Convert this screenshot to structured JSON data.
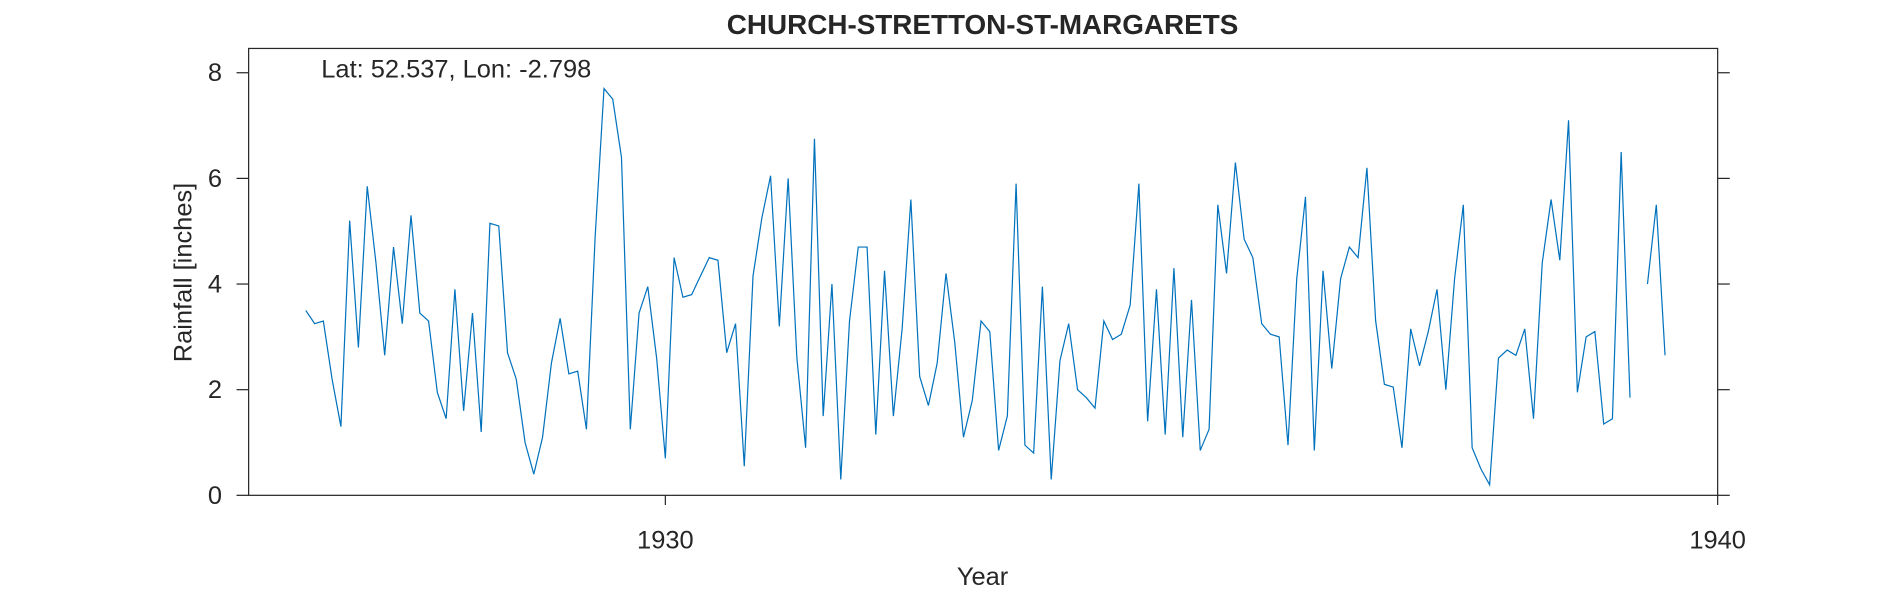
{
  "chart_data": {
    "type": "line",
    "title": "CHURCH-STRETTON-ST-MARGARETS",
    "annotation": "Lat: 52.537, Lon: -2.798",
    "xlabel": "Year",
    "ylabel": "Rainfall [inches]",
    "color": "#0072bd",
    "xlim": [
      1926.04,
      1940
    ],
    "xticks": [
      1930,
      1940
    ],
    "ylim": [
      0,
      8.46
    ],
    "yticks": [
      0,
      2,
      4,
      6,
      8
    ],
    "x": [
      1926.583,
      1926.667,
      1926.75,
      1926.833,
      1926.917,
      1927,
      1927.083,
      1927.167,
      1927.25,
      1927.333,
      1927.417,
      1927.5,
      1927.583,
      1927.667,
      1927.75,
      1927.833,
      1927.917,
      1928,
      1928.083,
      1928.167,
      1928.25,
      1928.333,
      1928.417,
      1928.5,
      1928.583,
      1928.667,
      1928.75,
      1928.833,
      1928.917,
      1929,
      1929.083,
      1929.167,
      1929.25,
      1929.333,
      1929.417,
      1929.5,
      1929.583,
      1929.667,
      1929.75,
      1929.833,
      1929.917,
      1930,
      1930.083,
      1930.167,
      1930.25,
      1930.333,
      1930.417,
      1930.5,
      1930.583,
      1930.667,
      1930.75,
      1930.833,
      1930.917,
      1931,
      1931.083,
      1931.167,
      1931.25,
      1931.333,
      1931.417,
      1931.5,
      1931.583,
      1931.667,
      1931.75,
      1931.833,
      1931.917,
      1932,
      1932.083,
      1932.167,
      1932.25,
      1932.333,
      1932.417,
      1932.5,
      1932.583,
      1932.667,
      1932.75,
      1932.833,
      1932.917,
      1933,
      1933.083,
      1933.167,
      1933.25,
      1933.333,
      1933.417,
      1933.5,
      1933.583,
      1933.667,
      1933.75,
      1933.833,
      1933.917,
      1934,
      1934.083,
      1934.167,
      1934.25,
      1934.333,
      1934.417,
      1934.5,
      1934.583,
      1934.667,
      1934.75,
      1934.833,
      1934.917,
      1935,
      1935.083,
      1935.167,
      1935.25,
      1935.333,
      1935.417,
      1935.5,
      1935.583,
      1935.667,
      1935.75,
      1935.833,
      1935.917,
      1936,
      1936.083,
      1936.167,
      1936.25,
      1936.333,
      1936.417,
      1936.5,
      1936.583,
      1936.667,
      1936.75,
      1936.833,
      1936.917,
      1937,
      1937.083,
      1937.167,
      1937.25,
      1937.333,
      1937.417,
      1937.5,
      1937.583,
      1937.667,
      1937.75,
      1937.833,
      1937.917,
      1938,
      1938.083,
      1938.167,
      1938.25,
      1938.333,
      1938.417,
      1938.5,
      1938.583,
      1938.667,
      1938.75,
      1938.833,
      1938.917,
      1939,
      1939.083,
      1939.167,
      1939.25,
      1939.333,
      1939.417,
      1939.5
    ],
    "values": [
      3.5,
      3.25,
      3.3,
      2.2,
      1.3,
      5.2,
      2.8,
      5.85,
      4.4,
      2.65,
      4.7,
      3.25,
      5.3,
      3.45,
      3.3,
      1.95,
      1.45,
      3.9,
      1.6,
      3.45,
      1.2,
      5.15,
      5.1,
      2.7,
      2.2,
      1.0,
      0.4,
      1.1,
      2.5,
      3.35,
      2.3,
      2.35,
      1.25,
      4.9,
      7.7,
      7.5,
      6.4,
      1.25,
      3.45,
      3.95,
      2.6,
      0.7,
      4.5,
      3.75,
      3.8,
      4.15,
      4.5,
      4.45,
      2.7,
      3.25,
      0.55,
      4.15,
      5.25,
      6.05,
      3.2,
      6.0,
      2.6,
      0.9,
      6.75,
      1.5,
      4.0,
      0.3,
      3.3,
      4.7,
      4.7,
      1.15,
      4.25,
      1.5,
      3.15,
      5.6,
      2.25,
      1.7,
      2.5,
      4.2,
      2.9,
      1.1,
      1.8,
      3.3,
      3.1,
      0.85,
      1.5,
      5.9,
      0.95,
      0.8,
      3.95,
      0.3,
      2.55,
      3.25,
      2.0,
      1.85,
      1.65,
      3.3,
      2.95,
      3.05,
      3.6,
      5.9,
      1.4,
      3.9,
      1.15,
      4.3,
      1.1,
      3.7,
      0.85,
      1.25,
      5.5,
      4.2,
      6.3,
      4.85,
      4.5,
      3.25,
      3.05,
      3.0,
      0.95,
      4.1,
      5.65,
      0.85,
      4.25,
      2.4,
      4.1,
      4.7,
      4.5,
      6.2,
      3.3,
      2.1,
      2.05,
      0.9,
      3.15,
      2.45,
      3.1,
      3.9,
      2.0,
      4.1,
      5.5,
      0.9,
      0.5,
      0.2,
      2.6,
      2.75,
      2.65,
      3.15,
      1.45,
      4.4,
      5.6,
      4.45,
      7.1,
      1.95,
      3.0,
      3.1,
      1.35,
      1.45,
      6.5,
      1.85,
      null,
      4.0,
      5.5,
      2.65
    ]
  }
}
